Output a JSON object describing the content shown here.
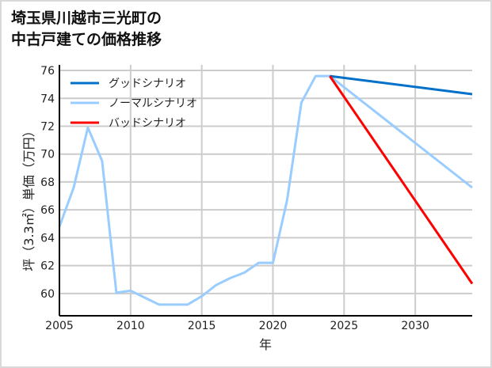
{
  "chart_data": {
    "type": "line",
    "title_lines": [
      "埼玉県川越市三光町の",
      "中古戸建ての価格推移"
    ],
    "xlabel": "年",
    "ylabel": "坪（3.3㎡）単価（万円）",
    "xlim": [
      2005,
      2034
    ],
    "ylim": [
      58.4,
      76.4
    ],
    "xticks": [
      2005,
      2010,
      2015,
      2020,
      2025,
      2030
    ],
    "yticks": [
      60,
      62,
      64,
      66,
      68,
      70,
      72,
      74,
      76
    ],
    "grid": true,
    "legend_position": "top-left",
    "series": [
      {
        "name": "グッドシナリオ",
        "color": "#0070c8",
        "x": [
          2024,
          2034
        ],
        "y": [
          75.6,
          74.3
        ]
      },
      {
        "name": "ノーマルシナリオ",
        "color": "#99ccff",
        "x": [
          2005,
          2006,
          2007,
          2008,
          2009,
          2010,
          2011,
          2012,
          2013,
          2014,
          2015,
          2016,
          2017,
          2018,
          2019,
          2020,
          2021,
          2022,
          2023,
          2024,
          2034
        ],
        "y": [
          64.8,
          67.6,
          71.9,
          69.5,
          60.05,
          60.2,
          59.7,
          59.2,
          59.2,
          59.2,
          59.8,
          60.6,
          61.1,
          61.5,
          62.2,
          62.2,
          66.7,
          73.7,
          75.6,
          75.6,
          67.6
        ]
      },
      {
        "name": "バッドシナリオ",
        "color": "#ff0000",
        "x": [
          2024,
          2034
        ],
        "y": [
          75.6,
          60.7
        ]
      }
    ]
  }
}
